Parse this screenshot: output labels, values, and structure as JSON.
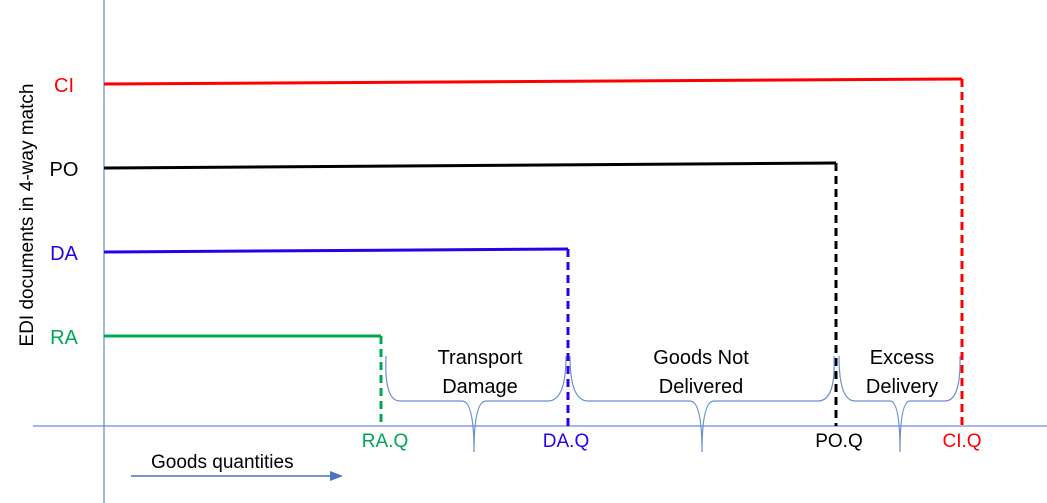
{
  "y_axis_label": "EDI documents in 4-way match",
  "x_axis_label": "Goods quantities",
  "documents": [
    {
      "id": "ra",
      "label": "RA",
      "qty_label": "RA.Q",
      "color": "#00a651"
    },
    {
      "id": "da",
      "label": "DA",
      "qty_label": "DA.Q",
      "color": "#2b00e6"
    },
    {
      "id": "po",
      "label": "PO",
      "qty_label": "PO.Q",
      "color": "#000000"
    },
    {
      "id": "ci",
      "label": "CI",
      "qty_label": "CI.Q",
      "color": "#ff0000"
    }
  ],
  "gaps": [
    {
      "id": "transport-damage",
      "line1": "Transport",
      "line2": "Damage"
    },
    {
      "id": "goods-not-delivered",
      "line1": "Goods Not",
      "line2": "Delivered"
    },
    {
      "id": "excess-delivery",
      "line1": "Excess",
      "line2": "Delivery"
    }
  ],
  "colors": {
    "axis": "#4a72c4",
    "brace": "#6a8fd0",
    "text": "#000000"
  }
}
